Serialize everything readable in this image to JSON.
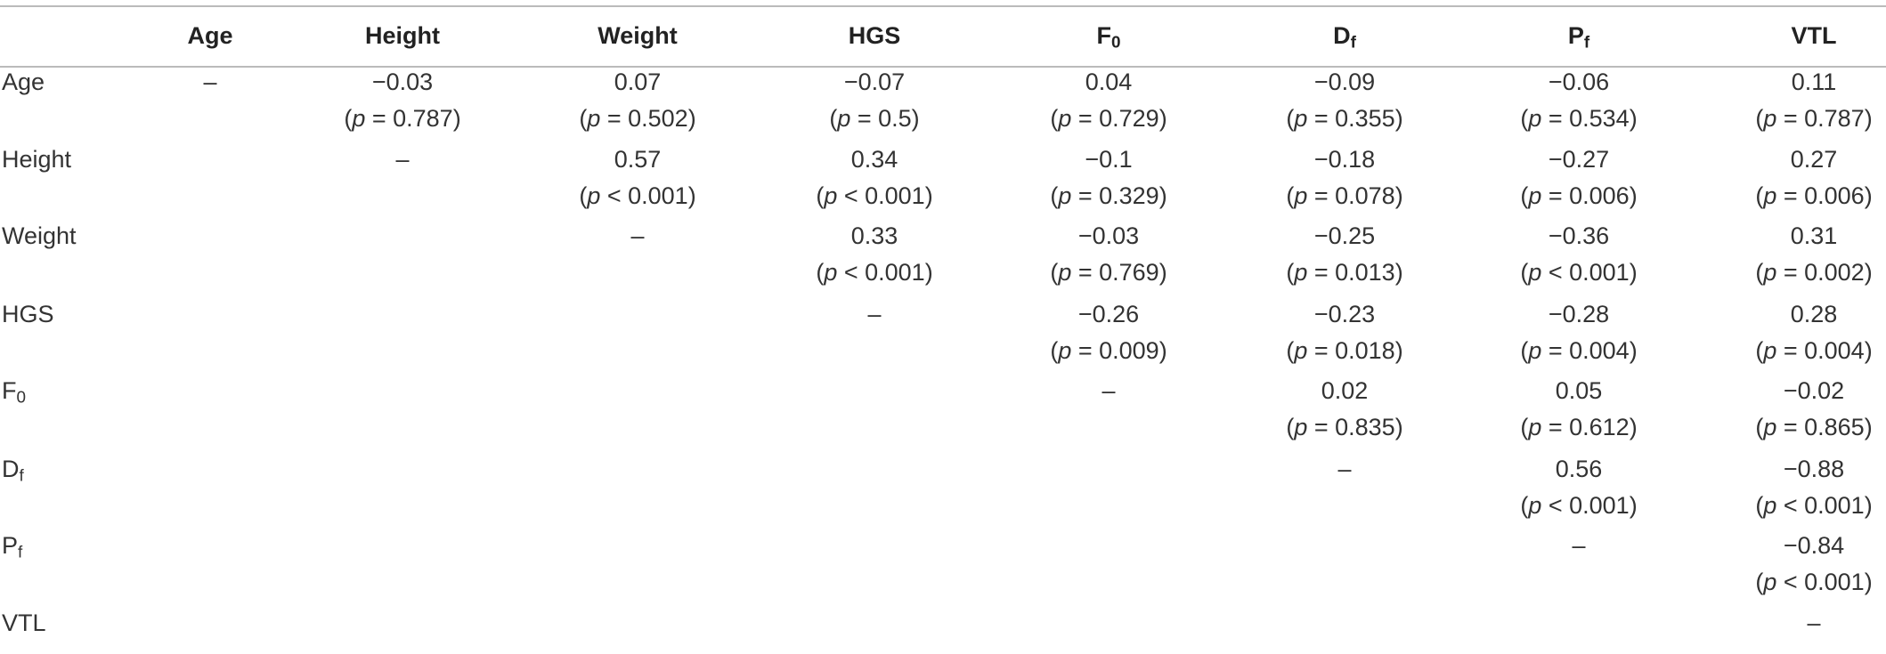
{
  "table": {
    "header": [
      null,
      {
        "main": "Age"
      },
      {
        "main": "Height"
      },
      {
        "main": "Weight"
      },
      {
        "main": "HGS"
      },
      {
        "main": "F",
        "sub": "0"
      },
      {
        "main": "D",
        "sub": "f"
      },
      {
        "main": "P",
        "sub": "f"
      },
      {
        "main": "VTL"
      }
    ],
    "rows": [
      {
        "label": {
          "main": "Age"
        },
        "cells": [
          "–",
          {
            "r": "−0.03",
            "p": [
              "(",
              "p",
              " = 0.787)"
            ]
          },
          {
            "r": "0.07",
            "p": [
              "(",
              "p",
              " = 0.502)"
            ]
          },
          {
            "r": "−0.07",
            "p": [
              "(",
              "p",
              " = 0.5)"
            ]
          },
          {
            "r": "0.04",
            "p": [
              "(",
              "p",
              " = 0.729)"
            ]
          },
          {
            "r": "−0.09",
            "p": [
              "(",
              "p",
              " = 0.355)"
            ]
          },
          {
            "r": "−0.06",
            "p": [
              "(",
              "p",
              " = 0.534)"
            ]
          },
          {
            "r": "0.11",
            "p": [
              "(",
              "p",
              " = 0.787)"
            ]
          }
        ]
      },
      {
        "label": {
          "main": "Height"
        },
        "cells": [
          null,
          "–",
          {
            "r": "0.57",
            "p": [
              "(",
              "p",
              " < 0.001)"
            ]
          },
          {
            "r": "0.34",
            "p": [
              "(",
              "p",
              " < 0.001)"
            ]
          },
          {
            "r": "−0.1",
            "p": [
              "(",
              "p",
              " = 0.329)"
            ]
          },
          {
            "r": "−0.18",
            "p": [
              "(",
              "p",
              " = 0.078)"
            ]
          },
          {
            "r": "−0.27",
            "p": [
              "(",
              "p",
              " = 0.006)"
            ]
          },
          {
            "r": "0.27",
            "p": [
              "(",
              "p",
              " = 0.006)"
            ]
          }
        ]
      },
      {
        "label": {
          "main": "Weight"
        },
        "cells": [
          null,
          null,
          "–",
          {
            "r": "0.33",
            "p": [
              "(",
              "p",
              " < 0.001)"
            ]
          },
          {
            "r": "−0.03",
            "p": [
              "(",
              "p",
              " = 0.769)"
            ]
          },
          {
            "r": "−0.25",
            "p": [
              "(",
              "p",
              " = 0.013)"
            ]
          },
          {
            "r": "−0.36",
            "p": [
              "(",
              "p",
              " < 0.001)"
            ]
          },
          {
            "r": "0.31",
            "p": [
              "(",
              "p",
              " = 0.002)"
            ]
          }
        ]
      },
      {
        "label": {
          "main": "HGS"
        },
        "cells": [
          null,
          null,
          null,
          "–",
          {
            "r": "−0.26",
            "p": [
              "(",
              "p",
              " = 0.009)"
            ]
          },
          {
            "r": "−0.23",
            "p": [
              "(",
              "p",
              " = 0.018)"
            ]
          },
          {
            "r": "−0.28",
            "p": [
              "(",
              "p",
              " = 0.004)"
            ]
          },
          {
            "r": "0.28",
            "p": [
              "(",
              "p",
              " = 0.004)"
            ]
          }
        ]
      },
      {
        "label": {
          "main": "F",
          "sub": "0"
        },
        "cells": [
          null,
          null,
          null,
          null,
          "–",
          {
            "r": "0.02",
            "p": [
              "(",
              "p",
              " = 0.835)"
            ]
          },
          {
            "r": "0.05",
            "p": [
              "(",
              "p",
              " = 0.612)"
            ]
          },
          {
            "r": "−0.02",
            "p": [
              "(",
              "p",
              " = 0.865)"
            ]
          }
        ]
      },
      {
        "label": {
          "main": "D",
          "sub": "f"
        },
        "cells": [
          null,
          null,
          null,
          null,
          null,
          "–",
          {
            "r": "0.56",
            "p": [
              "(",
              "p",
              " < 0.001)"
            ]
          },
          {
            "r": "−0.88",
            "p": [
              "(",
              "p",
              " < 0.001)"
            ]
          }
        ]
      },
      {
        "label": {
          "main": "P",
          "sub": "f"
        },
        "cells": [
          null,
          null,
          null,
          null,
          null,
          null,
          "–",
          {
            "r": "−0.84",
            "p": [
              "(",
              "p",
              " < 0.001)"
            ]
          }
        ]
      },
      {
        "label": {
          "main": "VTL"
        },
        "cells": [
          null,
          null,
          null,
          null,
          null,
          null,
          null,
          "–"
        ]
      }
    ]
  }
}
